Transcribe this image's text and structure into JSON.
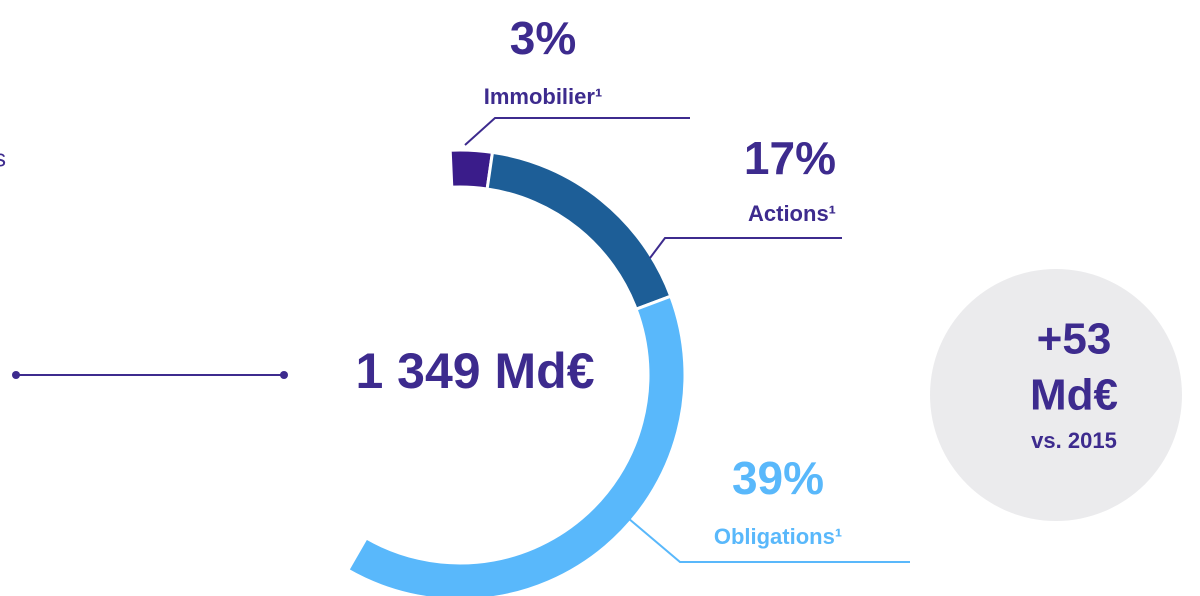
{
  "chart_data": {
    "type": "donut",
    "categories": [
      "Immobilier¹",
      "Actions¹",
      "Obligations¹"
    ],
    "values": [
      3,
      17,
      39
    ],
    "value_labels": [
      "3%",
      "17%",
      "39%"
    ],
    "colors": [
      "#3a1c8a",
      "#1d5e97",
      "#59b8fb"
    ],
    "center_label": "1 349 Md€",
    "left_fragment": "s",
    "badge": {
      "amount": "+53",
      "unit": "Md€",
      "note": "vs. 2015"
    }
  }
}
